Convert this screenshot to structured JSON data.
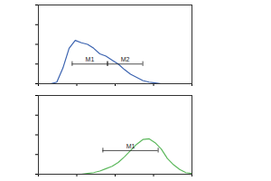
{
  "chart_data": [
    {
      "type": "line",
      "color": "#3b63b0",
      "x": [
        0,
        4,
        8,
        12,
        16,
        20,
        24,
        28,
        32,
        36,
        40,
        44,
        48,
        52,
        56,
        60,
        64,
        68,
        72,
        76,
        80,
        84,
        88,
        92,
        96,
        100
      ],
      "values": [
        0,
        0,
        0,
        2,
        20,
        45,
        55,
        52,
        50,
        45,
        38,
        35,
        30,
        25,
        18,
        12,
        8,
        4,
        2,
        1,
        0,
        0,
        0,
        0,
        0,
        0
      ],
      "xlim": [
        0,
        100
      ],
      "ylim": [
        0,
        100
      ],
      "xticks": [
        0,
        25,
        50,
        75,
        100
      ],
      "yticks": [
        0,
        25,
        50,
        75,
        100
      ],
      "tick_labels": false,
      "gates": [
        {
          "x1": 22,
          "x2": 45,
          "y": 25,
          "label": "M1"
        },
        {
          "x1": 45,
          "x2": 68,
          "y": 25,
          "label": "M2"
        }
      ]
    },
    {
      "type": "line",
      "color": "#5cb85c",
      "x": [
        0,
        4,
        8,
        12,
        16,
        20,
        24,
        28,
        32,
        36,
        40,
        44,
        48,
        52,
        56,
        60,
        64,
        68,
        72,
        76,
        80,
        84,
        88,
        92,
        96,
        100
      ],
      "values": [
        0,
        0,
        0,
        0,
        0,
        0,
        0,
        0,
        1,
        2,
        4,
        7,
        10,
        15,
        22,
        30,
        38,
        44,
        45,
        40,
        32,
        20,
        12,
        6,
        2,
        1
      ],
      "xlim": [
        0,
        100
      ],
      "ylim": [
        0,
        100
      ],
      "xticks": [
        0,
        25,
        50,
        75,
        100
      ],
      "yticks": [
        0,
        25,
        50,
        75,
        100
      ],
      "tick_labels": false,
      "gates": [
        {
          "x1": 42,
          "x2": 78,
          "y": 30,
          "label": "M1"
        }
      ]
    }
  ]
}
